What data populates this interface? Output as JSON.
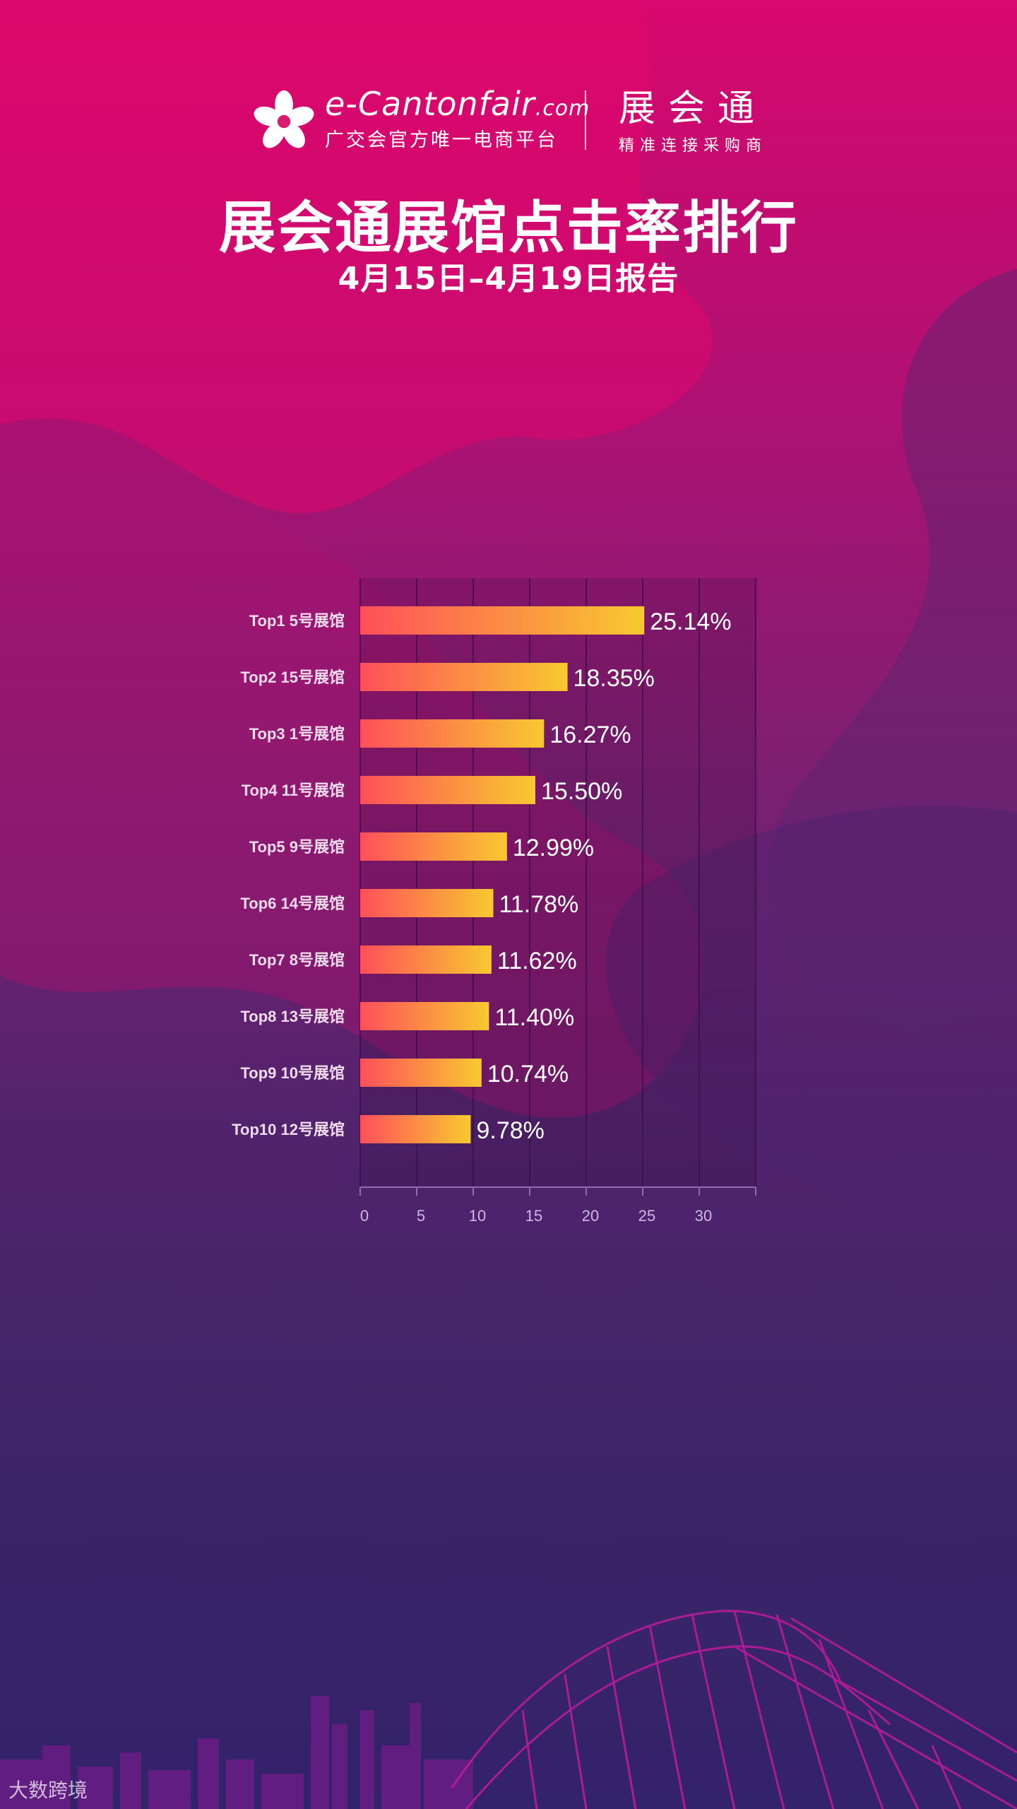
{
  "header": {
    "brand_main": "e-Cantonfair",
    "brand_domain": ".com",
    "brand_sub": "广交会官方唯一电商平台",
    "product_name": "展会通",
    "product_sub": "精准连接采购商"
  },
  "title": "展会通展馆点击率排行",
  "subtitle": "4月15日–4月19日报告",
  "watermark": "大数跨境",
  "colors": {
    "bar_start": "#ff4f5a",
    "bar_end": "#f8c92f"
  },
  "chart_data": {
    "type": "bar",
    "orientation": "horizontal",
    "categories": [
      "Top1 5号展馆",
      "Top2 15号展馆",
      "Top3 1号展馆",
      "Top4 11号展馆",
      "Top5 9号展馆",
      "Top6 14号展馆",
      "Top7 8号展馆",
      "Top8 13号展馆",
      "Top9 10号展馆",
      "Top10 12号展馆"
    ],
    "values": [
      25.14,
      18.35,
      16.27,
      15.5,
      12.99,
      11.78,
      11.62,
      11.4,
      10.74,
      9.78
    ],
    "value_labels": [
      "25.14%",
      "18.35%",
      "16.27%",
      "15.50%",
      "12.99%",
      "11.78%",
      "11.62%",
      "11.40%",
      "10.74%",
      "9.78%"
    ],
    "ticks": [
      "0",
      "5",
      "10",
      "15",
      "20",
      "25",
      "30"
    ],
    "xlim": [
      0,
      35
    ],
    "grid": true
  }
}
